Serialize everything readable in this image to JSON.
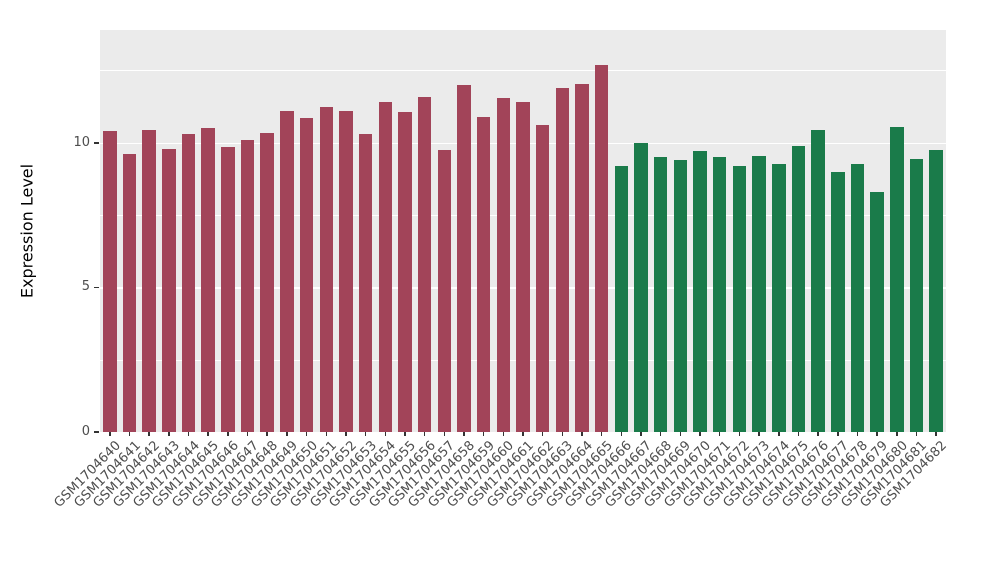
{
  "figure": {
    "background": "#FFFFFF"
  },
  "chart_data": {
    "type": "bar",
    "title": "",
    "xlabel": "",
    "ylabel": "Expression Level",
    "ylim": [
      0,
      13.9
    ],
    "yticks": [
      0,
      5,
      10
    ],
    "yticks_minor": [
      2.5,
      7.5,
      12.5
    ],
    "grid": true,
    "legend_position": "none",
    "panel_background": "#EBEBEB",
    "grid_color": "#FFFFFF",
    "tick_label_color": "#4D4D4D",
    "axis_title_color": "#000000",
    "categories": [
      "GSM1704640",
      "GSM1704641",
      "GSM1704642",
      "GSM1704643",
      "GSM1704644",
      "GSM1704645",
      "GSM1704646",
      "GSM1704647",
      "GSM1704648",
      "GSM1704649",
      "GSM1704650",
      "GSM1704651",
      "GSM1704652",
      "GSM1704653",
      "GSM1704654",
      "GSM1704655",
      "GSM1704656",
      "GSM1704657",
      "GSM1704658",
      "GSM1704659",
      "GSM1704660",
      "GSM1704661",
      "GSM1704662",
      "GSM1704663",
      "GSM1704664",
      "GSM1704665",
      "GSM1704666",
      "GSM1704667",
      "GSM1704668",
      "GSM1704669",
      "GSM1704670",
      "GSM1704671",
      "GSM1704672",
      "GSM1704673",
      "GSM1704674",
      "GSM1704675",
      "GSM1704676",
      "GSM1704677",
      "GSM1704678",
      "GSM1704679",
      "GSM1704680",
      "GSM1704681",
      "GSM1704682"
    ],
    "values": [
      10.4,
      9.6,
      10.45,
      9.8,
      10.3,
      10.5,
      9.85,
      10.1,
      10.35,
      11.1,
      10.85,
      11.25,
      11.1,
      10.3,
      11.4,
      11.05,
      11.6,
      9.75,
      12.0,
      10.9,
      11.55,
      11.4,
      10.6,
      11.9,
      12.05,
      12.7,
      9.2,
      10.0,
      9.5,
      9.4,
      9.7,
      9.5,
      9.2,
      9.55,
      9.25,
      9.9,
      10.45,
      9.0,
      9.25,
      8.3,
      10.55,
      9.45,
      9.75
    ],
    "groups": [
      {
        "color": "#A24459",
        "start_index": 0,
        "end_index": 25
      },
      {
        "color": "#1A7B4A",
        "start_index": 26,
        "end_index": 42
      }
    ]
  }
}
